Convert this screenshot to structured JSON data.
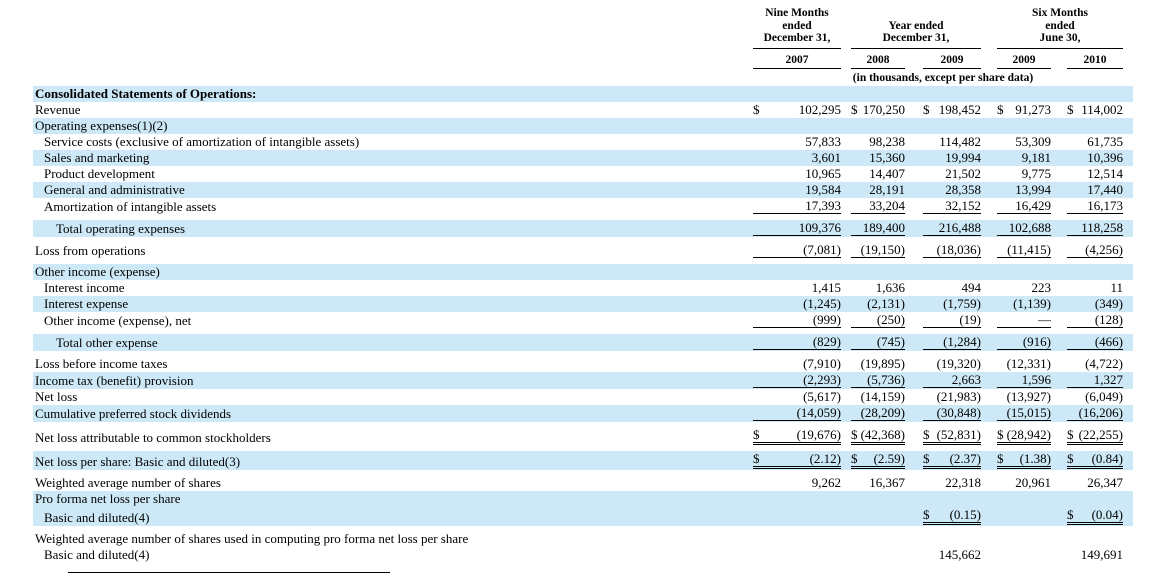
{
  "table": {
    "header": {
      "col_groups": [
        {
          "lines": [
            "Nine Months",
            "ended",
            "December 31,"
          ],
          "years": [
            "2007"
          ]
        },
        {
          "lines": [
            "Year ended",
            "December 31,"
          ],
          "years": [
            "2008",
            "2009"
          ]
        },
        {
          "lines": [
            "Six Months",
            "ended",
            "June 30,"
          ],
          "years": [
            "2009",
            "2010"
          ]
        }
      ],
      "units_note": "(in thousands, except per share data)"
    },
    "rows": [
      {
        "label": "Consolidated Statements of Operations:",
        "bold": true,
        "indent": 0,
        "hl": true,
        "cells": [
          null,
          null,
          null,
          null,
          null
        ]
      },
      {
        "label": "Revenue",
        "indent": 0,
        "hl": false,
        "cells": [
          {
            "d": "$",
            "v": "102,295"
          },
          {
            "d": "$",
            "v": "170,250"
          },
          {
            "d": "$",
            "v": "198,452"
          },
          {
            "d": "$",
            "v": "91,273"
          },
          {
            "d": "$",
            "v": "114,002"
          }
        ]
      },
      {
        "label": "Operating expenses(1)(2)",
        "indent": 0,
        "hl": true,
        "cells": [
          null,
          null,
          null,
          null,
          null
        ]
      },
      {
        "label": "Service costs (exclusive of amortization of intangible assets)",
        "indent": 1,
        "hl": false,
        "cells": [
          {
            "v": "57,833"
          },
          {
            "v": "98,238"
          },
          {
            "v": "114,482"
          },
          {
            "v": "53,309"
          },
          {
            "v": "61,735"
          }
        ]
      },
      {
        "label": "Sales and marketing",
        "indent": 1,
        "hl": true,
        "cells": [
          {
            "v": "3,601"
          },
          {
            "v": "15,360"
          },
          {
            "v": "19,994"
          },
          {
            "v": "9,181"
          },
          {
            "v": "10,396"
          }
        ]
      },
      {
        "label": "Product development",
        "indent": 1,
        "hl": false,
        "cells": [
          {
            "v": "10,965"
          },
          {
            "v": "14,407"
          },
          {
            "v": "21,502"
          },
          {
            "v": "9,775"
          },
          {
            "v": "12,514"
          }
        ]
      },
      {
        "label": "General and administrative",
        "indent": 1,
        "hl": true,
        "cells": [
          {
            "v": "19,584"
          },
          {
            "v": "28,191"
          },
          {
            "v": "28,358"
          },
          {
            "v": "13,994"
          },
          {
            "v": "17,440"
          }
        ]
      },
      {
        "label": "Amortization of intangible assets",
        "indent": 1,
        "hl": false,
        "u": "s",
        "cells": [
          {
            "v": "17,393"
          },
          {
            "v": "33,204"
          },
          {
            "v": "32,152"
          },
          {
            "v": "16,429"
          },
          {
            "v": "16,173"
          }
        ]
      },
      {
        "spacer": true
      },
      {
        "label": "Total operating expenses",
        "indent": 2,
        "hl": true,
        "u": "s",
        "cells": [
          {
            "v": "109,376"
          },
          {
            "v": "189,400"
          },
          {
            "v": "216,488"
          },
          {
            "v": "102,688"
          },
          {
            "v": "118,258"
          }
        ]
      },
      {
        "spacer": true
      },
      {
        "label": "Loss from operations",
        "indent": 0,
        "hl": false,
        "u": "s",
        "cells": [
          {
            "v": "(7,081)"
          },
          {
            "v": "(19,150)"
          },
          {
            "v": "(18,036)"
          },
          {
            "v": "(11,415)"
          },
          {
            "v": "(4,256)"
          }
        ]
      },
      {
        "spacer": true
      },
      {
        "label": "Other income (expense)",
        "indent": 0,
        "hl": true,
        "cells": [
          null,
          null,
          null,
          null,
          null
        ]
      },
      {
        "label": "Interest income",
        "indent": 1,
        "hl": false,
        "cells": [
          {
            "v": "1,415"
          },
          {
            "v": "1,636"
          },
          {
            "v": "494"
          },
          {
            "v": "223"
          },
          {
            "v": "11"
          }
        ]
      },
      {
        "label": "Interest expense",
        "indent": 1,
        "hl": true,
        "cells": [
          {
            "v": "(1,245)"
          },
          {
            "v": "(2,131)"
          },
          {
            "v": "(1,759)"
          },
          {
            "v": "(1,139)"
          },
          {
            "v": "(349)"
          }
        ]
      },
      {
        "label": "Other income (expense), net",
        "indent": 1,
        "hl": false,
        "u": "s",
        "cells": [
          {
            "v": "(999)"
          },
          {
            "v": "(250)"
          },
          {
            "v": "(19)"
          },
          {
            "v": "—"
          },
          {
            "v": "(128)"
          }
        ]
      },
      {
        "spacer": true
      },
      {
        "label": "Total other expense",
        "indent": 2,
        "hl": true,
        "u": "s",
        "cells": [
          {
            "v": "(829)"
          },
          {
            "v": "(745)"
          },
          {
            "v": "(1,284)"
          },
          {
            "v": "(916)"
          },
          {
            "v": "(466)"
          }
        ]
      },
      {
        "spacer": true
      },
      {
        "label": "Loss before income taxes",
        "indent": 0,
        "hl": false,
        "cells": [
          {
            "v": "(7,910)"
          },
          {
            "v": "(19,895)"
          },
          {
            "v": "(19,320)"
          },
          {
            "v": "(12,331)"
          },
          {
            "v": "(4,722)"
          }
        ]
      },
      {
        "label": "Income tax (benefit) provision",
        "indent": 0,
        "hl": true,
        "u": "s",
        "cells": [
          {
            "v": "(2,293)"
          },
          {
            "v": "(5,736)"
          },
          {
            "v": "2,663"
          },
          {
            "v": "1,596"
          },
          {
            "v": "1,327"
          }
        ]
      },
      {
        "label": "Net loss",
        "indent": 0,
        "hl": false,
        "cells": [
          {
            "v": "(5,617)"
          },
          {
            "v": "(14,159)"
          },
          {
            "v": "(21,983)"
          },
          {
            "v": "(13,927)"
          },
          {
            "v": "(6,049)"
          }
        ]
      },
      {
        "label": "Cumulative preferred stock dividends",
        "indent": 0,
        "hl": true,
        "u": "s",
        "cells": [
          {
            "v": "(14,059)"
          },
          {
            "v": "(28,209)"
          },
          {
            "v": "(30,848)"
          },
          {
            "v": "(15,015)"
          },
          {
            "v": "(16,206)"
          }
        ]
      },
      {
        "spacer": true
      },
      {
        "label": "Net loss attributable to common stockholders",
        "indent": 0,
        "hl": false,
        "u": "d",
        "cells": [
          {
            "d": "$",
            "v": "(19,676)"
          },
          {
            "d": "$",
            "v": "(42,368)"
          },
          {
            "d": "$",
            "v": "(52,831)"
          },
          {
            "d": "$",
            "v": "(28,942)"
          },
          {
            "d": "$",
            "v": "(22,255)"
          }
        ]
      },
      {
        "spacer": true
      },
      {
        "label": "Net loss per share: Basic and diluted(3)",
        "indent": 0,
        "hl": true,
        "u": "d",
        "cells": [
          {
            "d": "$",
            "v": "(2.12)"
          },
          {
            "d": "$",
            "v": "(2.59)"
          },
          {
            "d": "$",
            "v": "(2.37)"
          },
          {
            "d": "$",
            "v": "(1.38)"
          },
          {
            "d": "$",
            "v": "(0.84)"
          }
        ]
      },
      {
        "spacer": true
      },
      {
        "label": "Weighted average number of shares",
        "indent": 0,
        "hl": false,
        "cells": [
          {
            "v": "9,262"
          },
          {
            "v": "16,367"
          },
          {
            "v": "22,318"
          },
          {
            "v": "20,961"
          },
          {
            "v": "26,347"
          }
        ]
      },
      {
        "label": "Pro forma net loss per share",
        "indent": 0,
        "hl": true,
        "cells": [
          null,
          null,
          null,
          null,
          null
        ]
      },
      {
        "label": "Basic and diluted(4)",
        "indent": 1,
        "hl": true,
        "cells": [
          null,
          null,
          {
            "d": "$",
            "v": "(0.15)",
            "u": "d"
          },
          null,
          {
            "d": "$",
            "v": "(0.04)",
            "u": "d"
          }
        ]
      },
      {
        "spacer": true
      },
      {
        "label": "Weighted average number of shares used in computing pro forma net loss per share",
        "indent": 0,
        "hl": false,
        "cells": [
          null,
          null,
          null,
          null,
          null
        ]
      },
      {
        "label": "Basic and diluted(4)",
        "indent": 1,
        "hl": false,
        "cells": [
          null,
          null,
          {
            "v": "145,662"
          },
          null,
          {
            "v": "149,691"
          }
        ]
      }
    ]
  }
}
